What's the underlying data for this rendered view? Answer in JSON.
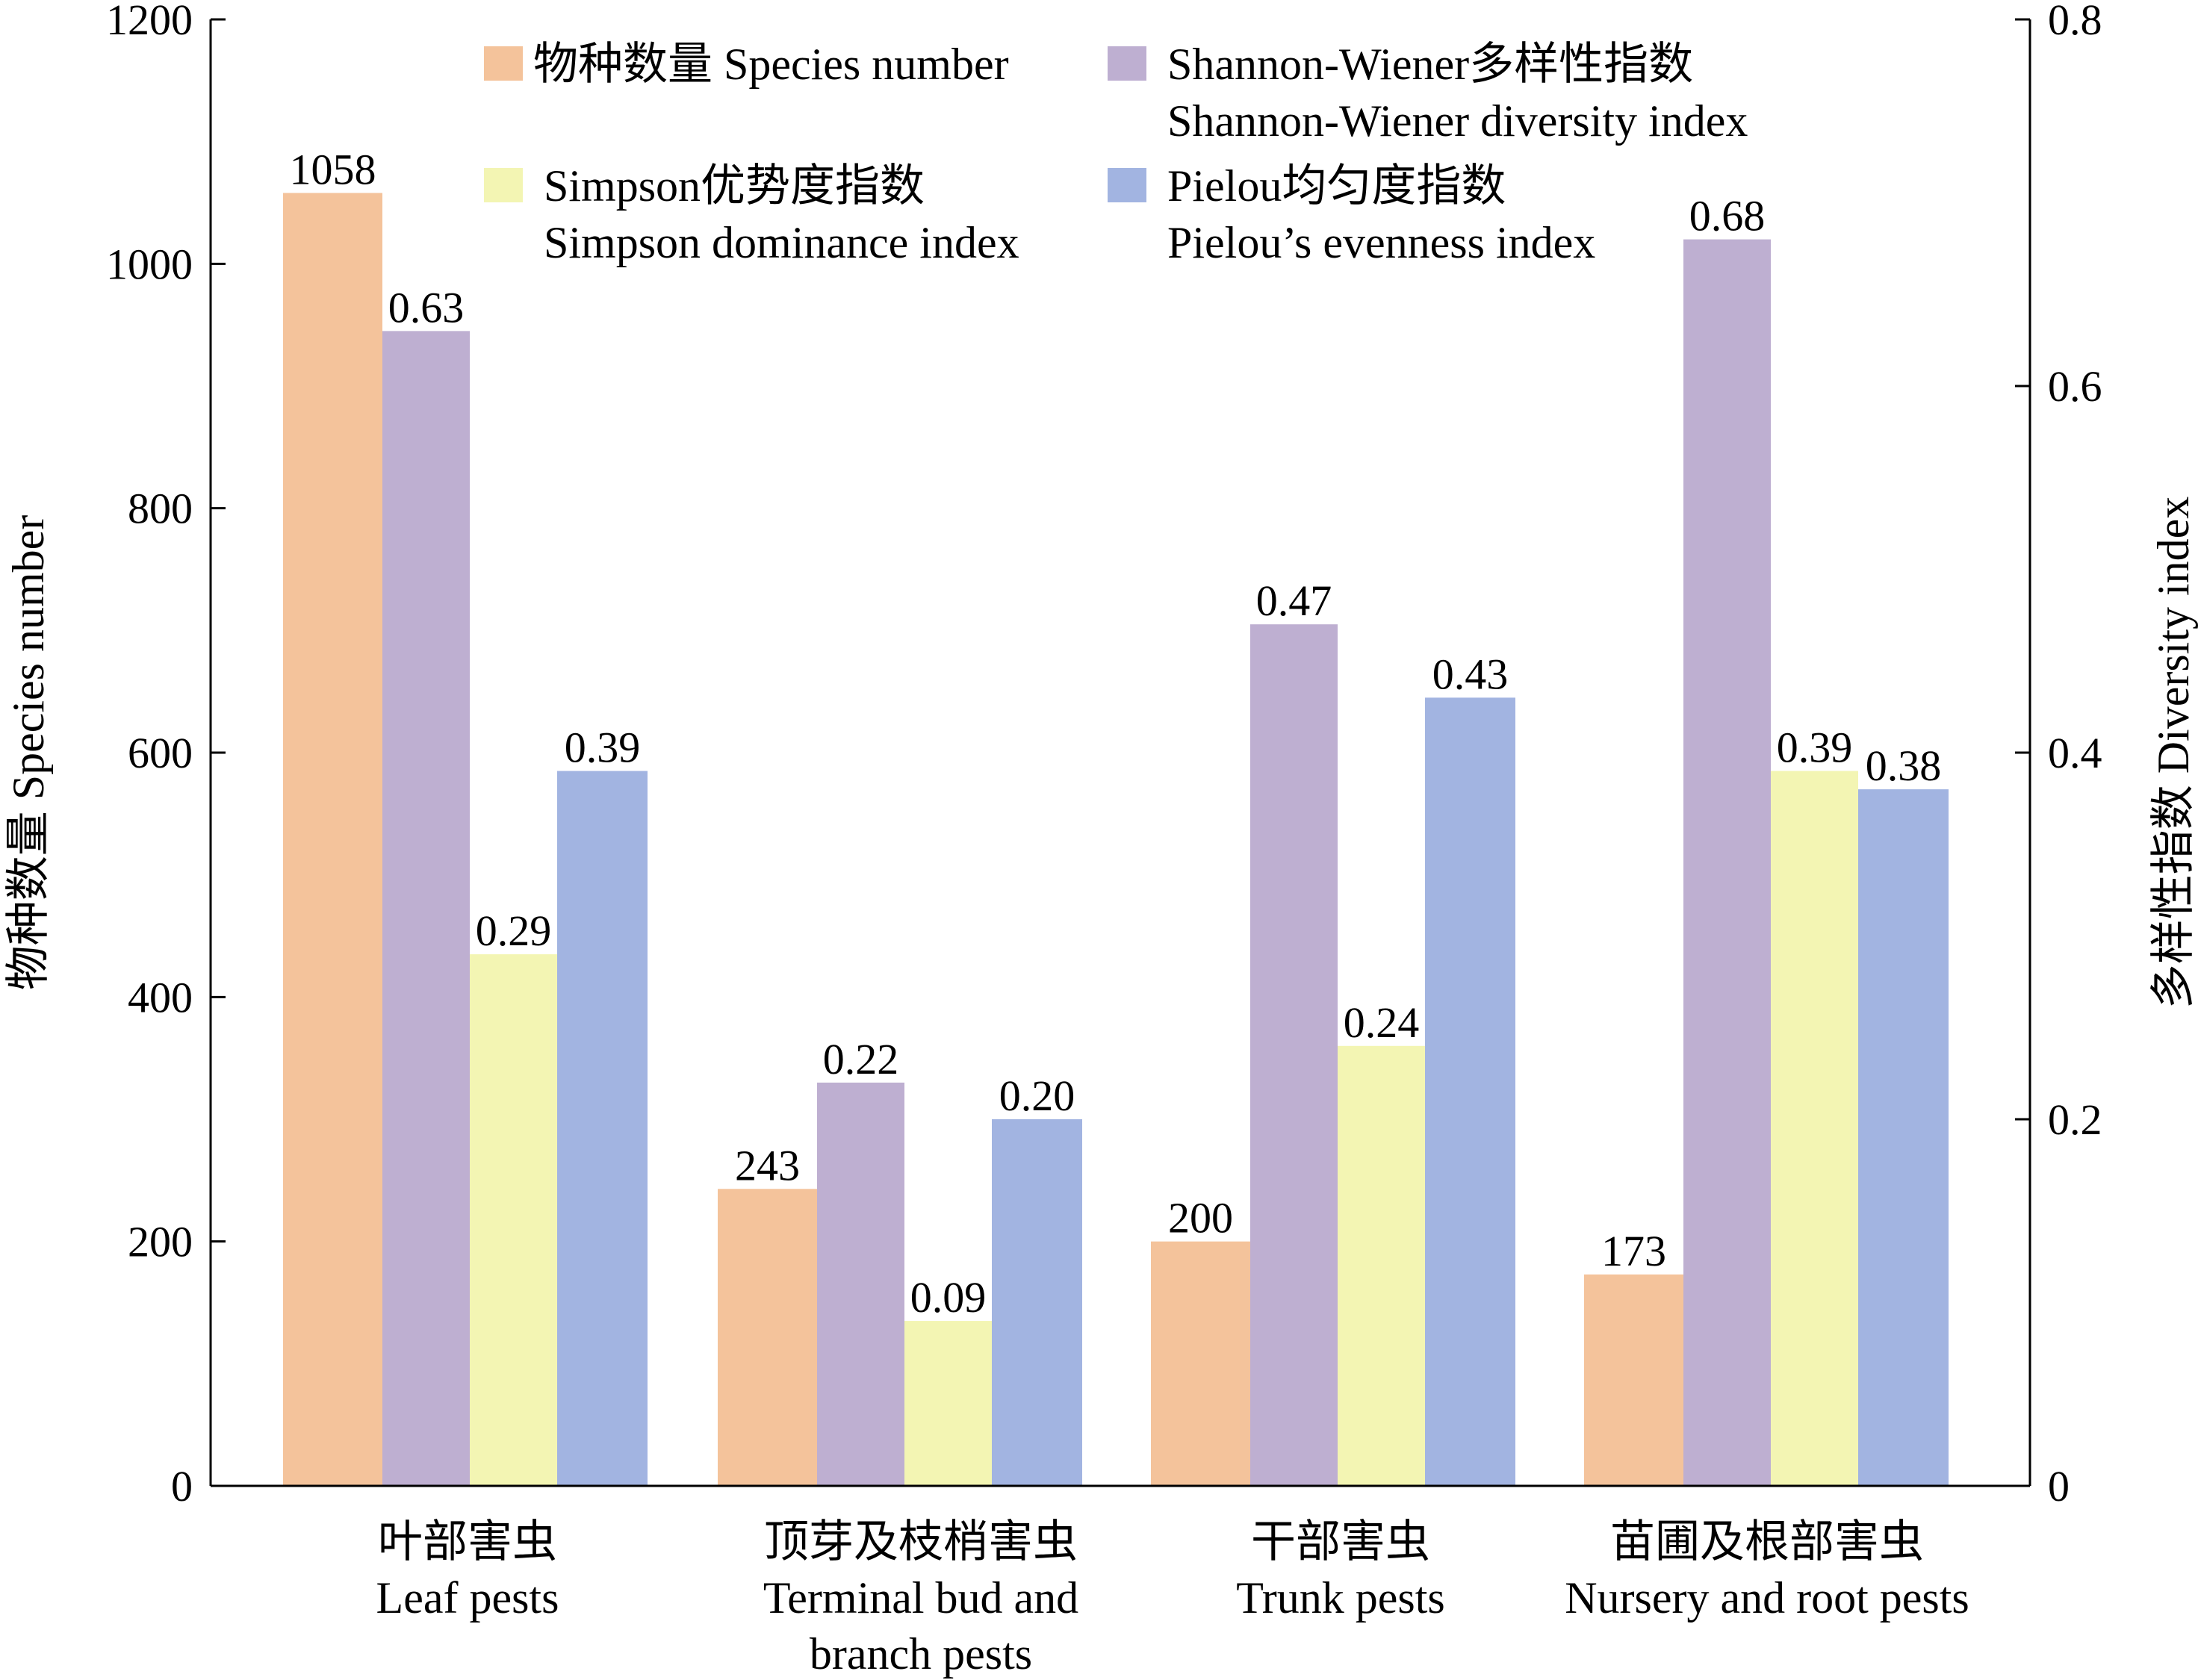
{
  "chart_data": {
    "type": "bar",
    "categories": [
      {
        "cn": "叶部害虫",
        "en": [
          "Leaf pests"
        ]
      },
      {
        "cn": "顶芽及枝梢害虫",
        "en": [
          "Terminal bud and",
          "branch pests"
        ]
      },
      {
        "cn": "干部害虫",
        "en": [
          "Trunk pests"
        ]
      },
      {
        "cn": "苗圃及根部害虫",
        "en": [
          "Nursery and root pests"
        ]
      }
    ],
    "series": [
      {
        "name": [
          "物种数量 Species number"
        ],
        "axis": "left",
        "color": "#F4C39B",
        "values": [
          1058,
          243,
          200,
          173
        ],
        "labels": [
          "1058",
          "243",
          "200",
          "173"
        ]
      },
      {
        "name": [
          "Shannon-Wiener多样性指数",
          "Shannon-Wiener diversity index"
        ],
        "axis": "right",
        "color": "#BEAFD1",
        "values": [
          0.63,
          0.22,
          0.47,
          0.68
        ],
        "labels": [
          "0.63",
          "0.22",
          "0.47",
          "0.68"
        ]
      },
      {
        "name": [
          "Simpson优势度指数",
          "Simpson dominance index"
        ],
        "axis": "right",
        "color": "#F3F5B3",
        "values": [
          0.29,
          0.09,
          0.24,
          0.39
        ],
        "labels": [
          "0.29",
          "0.09",
          "0.24",
          "0.39"
        ]
      },
      {
        "name": [
          "Pielou均匀度指数",
          "Pielou’s evenness index"
        ],
        "axis": "right",
        "color": "#A2B4E1",
        "values": [
          0.39,
          0.2,
          0.43,
          0.38
        ],
        "labels": [
          "0.39",
          "0.20",
          "0.43",
          "0.38"
        ]
      }
    ],
    "ylabel": "物种数量 Species number",
    "y2label": "多样性指数 Diversity index",
    "ylim": [
      0,
      1200
    ],
    "y2lim": [
      0,
      0.8
    ],
    "yticks": [
      "0",
      "200",
      "400",
      "600",
      "800",
      "1000",
      "1200"
    ],
    "y2ticks": [
      "0",
      "0.2",
      "0.4",
      "0.6",
      "0.8"
    ],
    "legend": "top-inside",
    "grid": false
  }
}
